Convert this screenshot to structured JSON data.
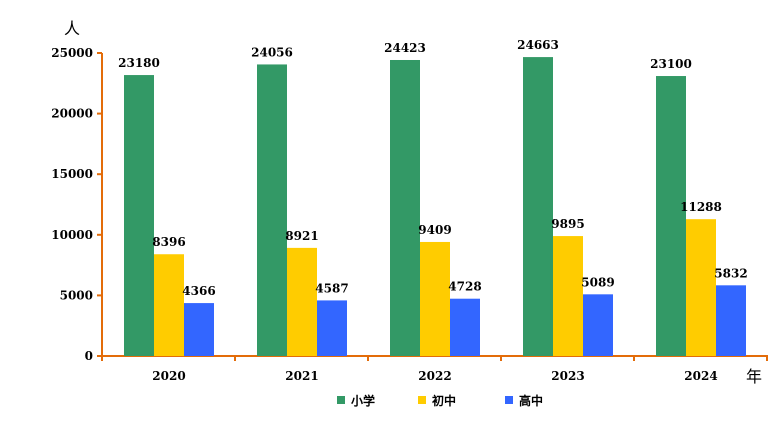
{
  "chart_data": {
    "type": "bar",
    "categories": [
      "2020",
      "2021",
      "2022",
      "2023",
      "2024"
    ],
    "series": [
      {
        "name": "小学",
        "color": "#339966",
        "values": [
          23180,
          24056,
          24423,
          24663,
          23100
        ]
      },
      {
        "name": "初中",
        "color": "#FFCC00",
        "values": [
          8396,
          8921,
          9409,
          9895,
          11288
        ]
      },
      {
        "name": "高中",
        "color": "#3366FF",
        "values": [
          4366,
          4587,
          4728,
          5089,
          5832
        ]
      }
    ],
    "ylabel": "人",
    "xlabel": "年",
    "ylim": [
      0,
      25000
    ],
    "yticks": [
      0,
      5000,
      10000,
      15000,
      20000,
      25000
    ],
    "axis_color": "#E36C09",
    "grid": false,
    "legend": "bottom"
  }
}
